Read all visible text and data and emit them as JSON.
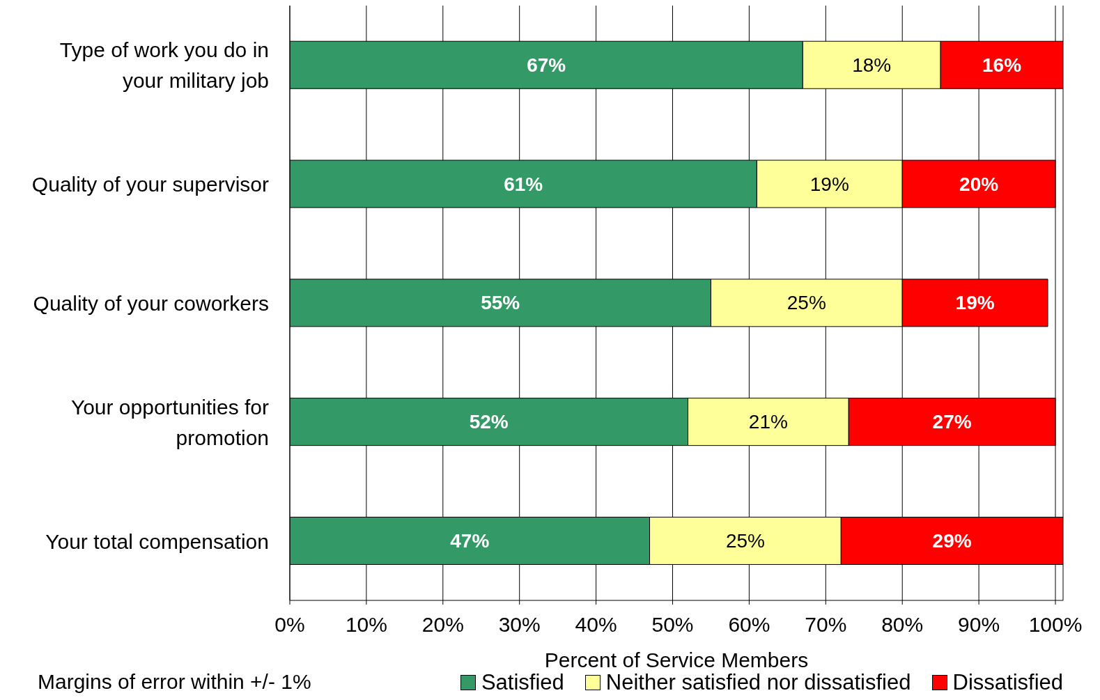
{
  "chart_data": {
    "type": "bar",
    "orientation": "horizontal",
    "stacked": true,
    "categories": [
      "Type of work you do in your military job",
      "Quality of your supervisor",
      "Quality of your coworkers",
      "Your opportunities for promotion",
      "Your total compensation"
    ],
    "series": [
      {
        "name": "Satisfied",
        "color": "#339966",
        "values": [
          67,
          61,
          55,
          52,
          47
        ],
        "value_labels": [
          "67%",
          "61%",
          "55%",
          "52%",
          "47%"
        ]
      },
      {
        "name": "Neither satisfied nor dissatisfied",
        "color": "#ffff99",
        "values": [
          18,
          19,
          25,
          21,
          25
        ],
        "value_labels": [
          "18%",
          "19%",
          "25%",
          "21%",
          "25%"
        ]
      },
      {
        "name": "Dissatisfied",
        "color": "#ff0000",
        "values": [
          16,
          20,
          19,
          27,
          29
        ],
        "value_labels": [
          "16%",
          "20%",
          "19%",
          "27%",
          "29%"
        ]
      }
    ],
    "xlim": [
      0,
      101
    ],
    "xticks": [
      {
        "value": 0,
        "label": "0%"
      },
      {
        "value": 10,
        "label": "10%"
      },
      {
        "value": 20,
        "label": "20%"
      },
      {
        "value": 30,
        "label": "30%"
      },
      {
        "value": 40,
        "label": "40%"
      },
      {
        "value": 50,
        "label": "50%"
      },
      {
        "value": 60,
        "label": "60%"
      },
      {
        "value": 70,
        "label": "70%"
      },
      {
        "value": 80,
        "label": "80%"
      },
      {
        "value": 90,
        "label": "90%"
      },
      {
        "value": 100,
        "label": "100%"
      }
    ],
    "xlabel": "Percent of Service Members",
    "grid": "x",
    "legend": "bottom right",
    "annotations": [
      "Margins of error within +/- 1%"
    ]
  }
}
